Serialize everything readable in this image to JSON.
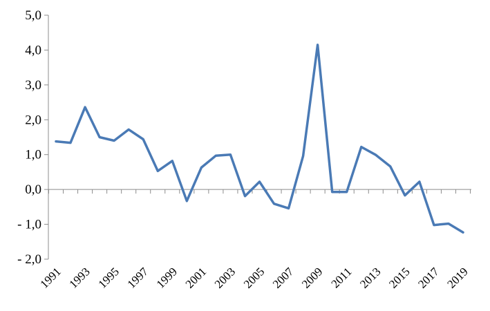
{
  "chart_data": {
    "type": "line",
    "title": "",
    "xlabel": "",
    "ylabel": "",
    "x": [
      1991,
      1992,
      1993,
      1994,
      1995,
      1996,
      1997,
      1998,
      1999,
      2000,
      2001,
      2002,
      2003,
      2004,
      2005,
      2006,
      2007,
      2008,
      2009,
      2010,
      2011,
      2012,
      2013,
      2014,
      2015,
      2016,
      2017,
      2018,
      2019
    ],
    "x_tick_labels": [
      "1991",
      "1993",
      "1995",
      "1997",
      "1999",
      "2001",
      "2003",
      "2005",
      "2007",
      "2009",
      "2011",
      "2013",
      "2015",
      "2017",
      "2019"
    ],
    "y_tick_values": [
      5,
      4,
      3,
      2,
      1,
      0,
      -1,
      -2
    ],
    "y_tick_labels": [
      "5,0",
      "4,0",
      "3,0",
      "2,0",
      "1,0",
      "0,0",
      "- 1,0",
      "- 2,0"
    ],
    "ylim": [
      -2,
      5
    ],
    "grid": false,
    "legend": "none",
    "series": [
      {
        "color": "#4a7ab5",
        "values": [
          1.38,
          1.34,
          2.36,
          1.5,
          1.4,
          1.72,
          1.44,
          0.53,
          0.82,
          -0.33,
          0.63,
          0.97,
          1.0,
          -0.19,
          0.22,
          -0.41,
          -0.54,
          0.96,
          4.15,
          -0.07,
          -0.07,
          1.22,
          0.99,
          0.66,
          -0.17,
          0.22,
          -1.02,
          -0.98,
          -1.23
        ]
      }
    ]
  }
}
